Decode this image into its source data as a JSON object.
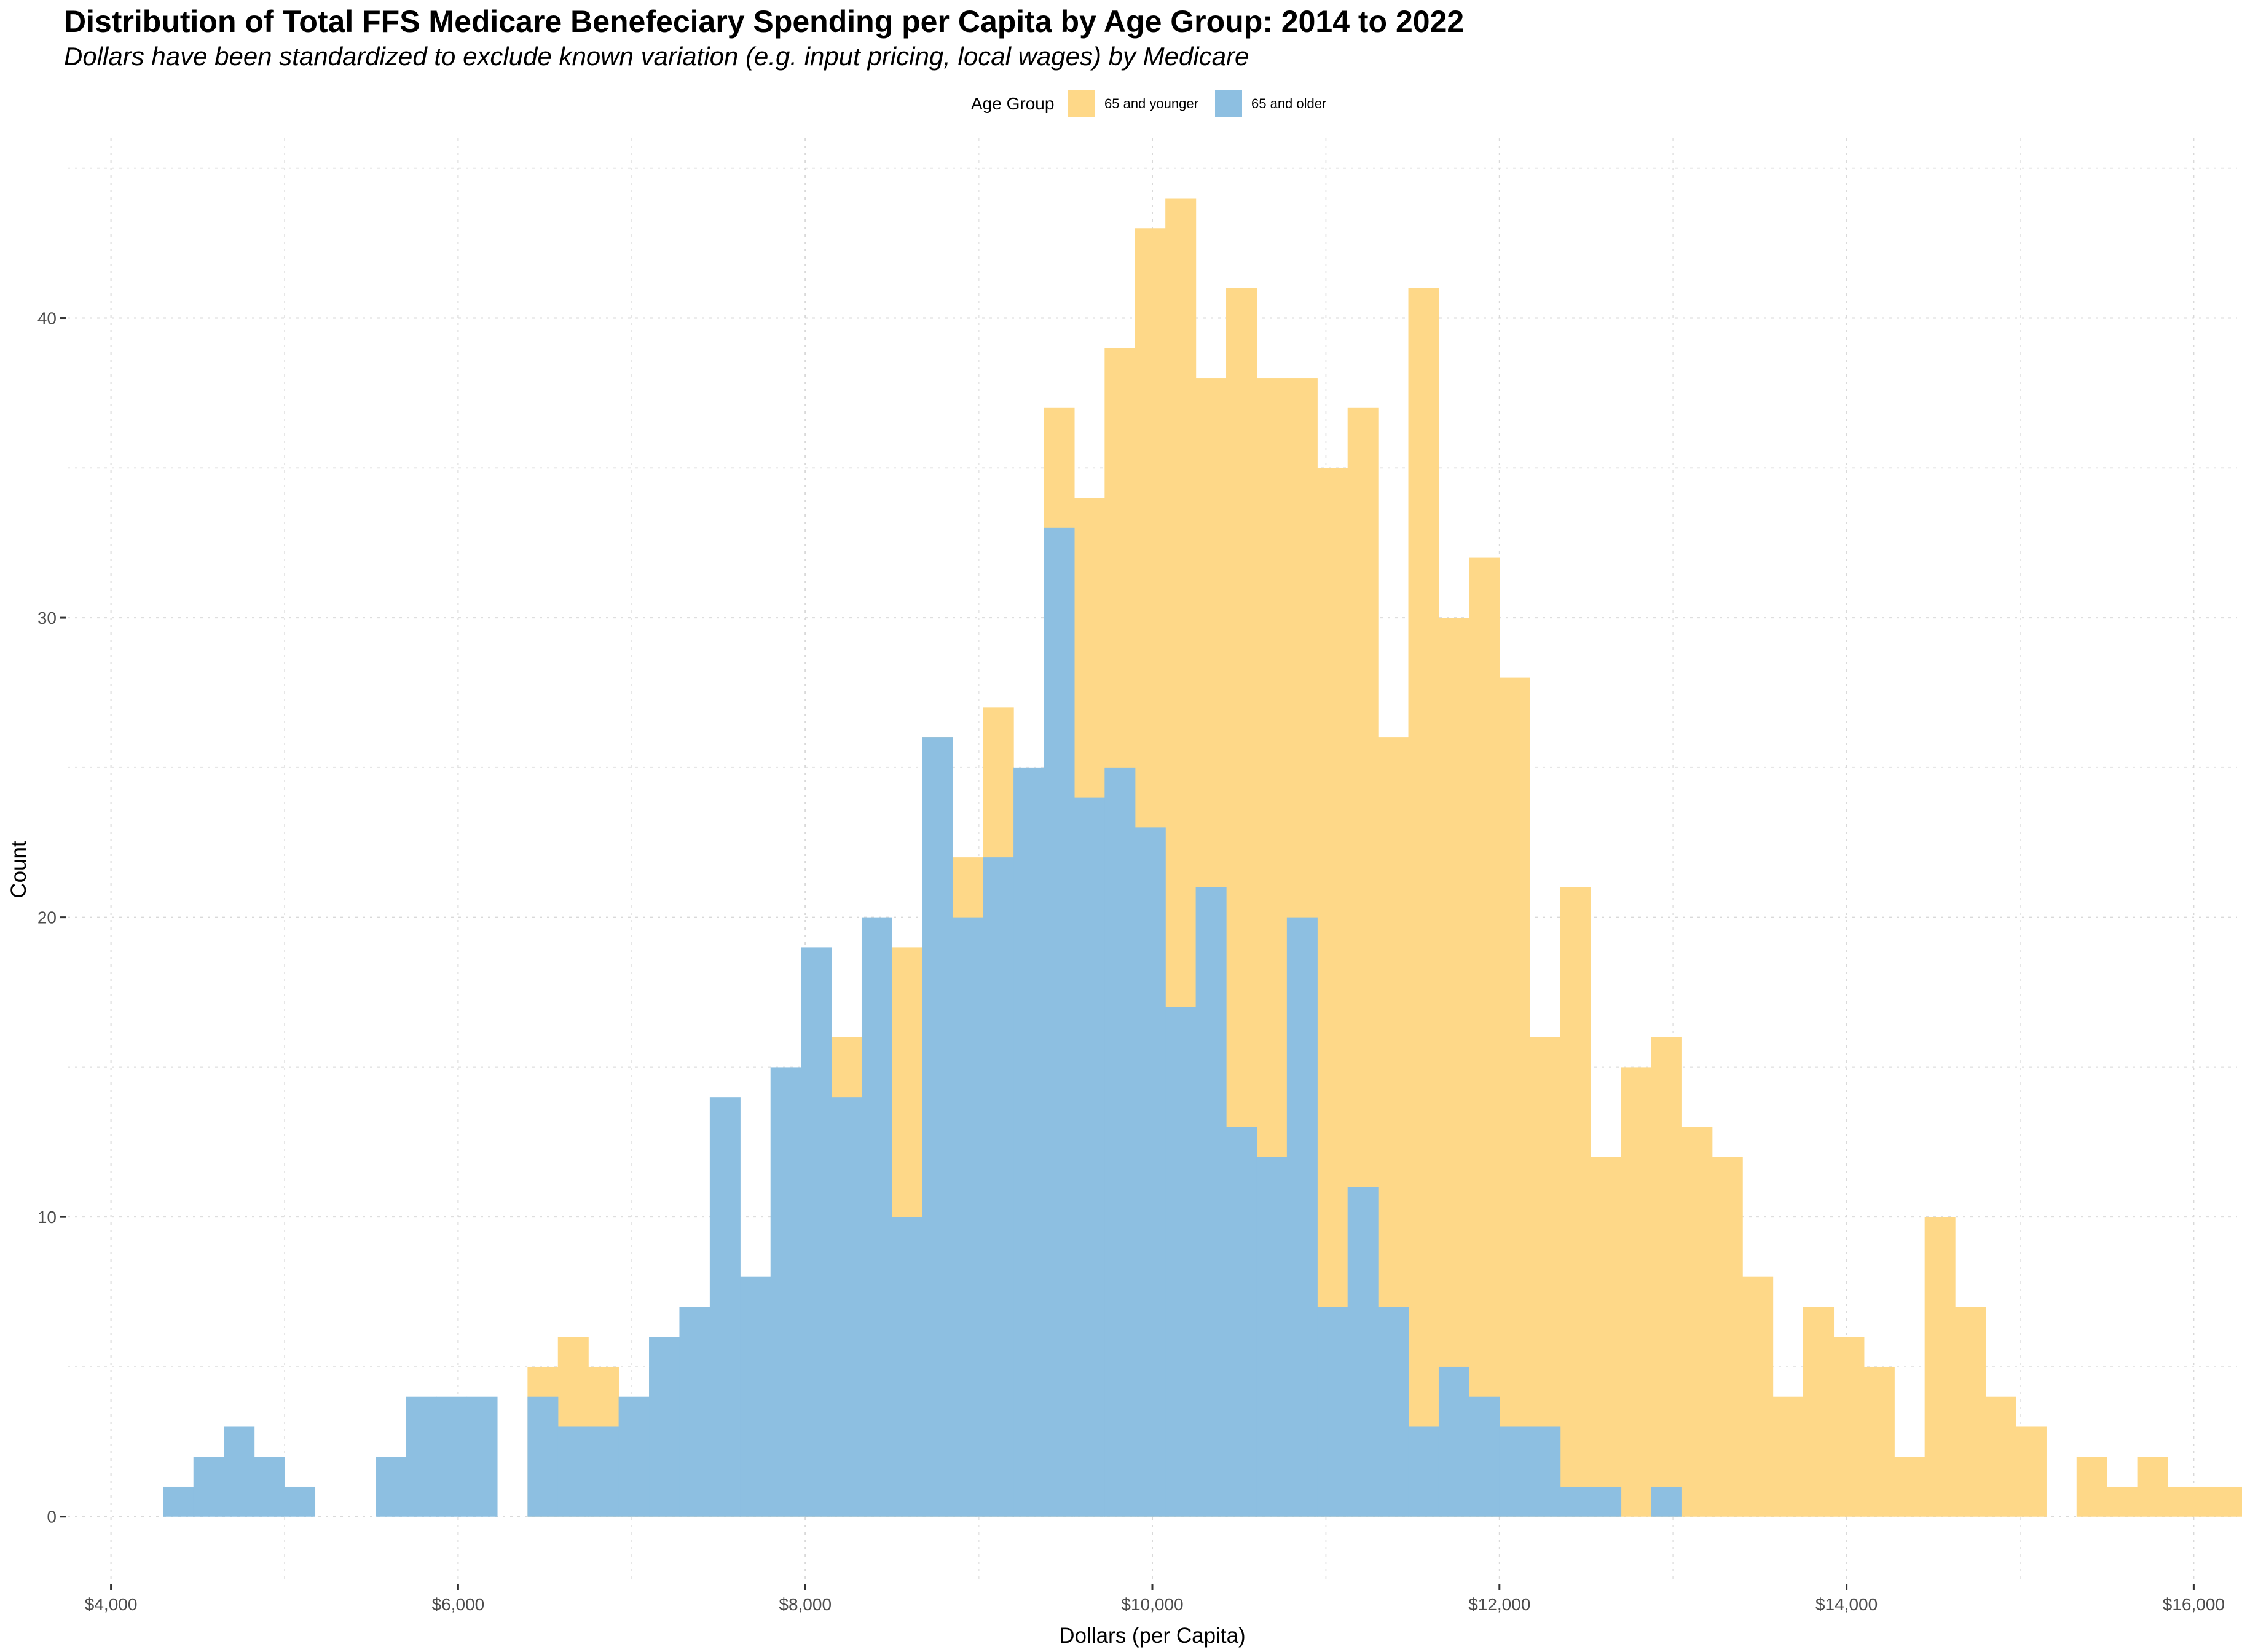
{
  "chart_data": {
    "type": "bar",
    "title": "Distribution of Total FFS Medicare Benefeciary Spending per Capita by Age Group: 2014 to 2022",
    "subtitle": "Dollars have been standardized to exclude known variation (e.g. input pricing, local wages) by Medicare",
    "xlabel": "Dollars (per Capita)",
    "ylabel": "Count",
    "xlim": [
      3750,
      16250
    ],
    "ylim": [
      -2.2,
      46
    ],
    "x_ticks": [
      4000,
      6000,
      8000,
      10000,
      12000,
      14000,
      16000
    ],
    "x_tick_labels": [
      "$4,000",
      "$6,000",
      "$8,000",
      "$10,000",
      "$12,000",
      "$14,000",
      "$16,000"
    ],
    "y_ticks": [
      0,
      10,
      20,
      30,
      40
    ],
    "y_tick_labels": [
      "0",
      "10",
      "20",
      "30",
      "40"
    ],
    "grid": true,
    "legend": {
      "title": "Age Group",
      "placement": "top"
    },
    "bins": {
      "start": 4300,
      "width": 175
    },
    "series": [
      {
        "name": "65 and younger",
        "color": "#fed888",
        "values": [
          0,
          0,
          0,
          0,
          0,
          0,
          0,
          0,
          0,
          0,
          0,
          0,
          5,
          6,
          5,
          2,
          5,
          4,
          3,
          4,
          7,
          8,
          16,
          12,
          19,
          26,
          22,
          27,
          21,
          37,
          34,
          39,
          43,
          44,
          38,
          41,
          38,
          38,
          35,
          37,
          26,
          41,
          30,
          32,
          28,
          16,
          21,
          12,
          15,
          16,
          13,
          12,
          8,
          4,
          7,
          6,
          5,
          2,
          10,
          7,
          4,
          3,
          0,
          2,
          1,
          2,
          1,
          1,
          1,
          1
        ]
      },
      {
        "name": "65 and older",
        "color": "#8dbfe1",
        "values": [
          1,
          2,
          3,
          2,
          1,
          0,
          0,
          2,
          4,
          4,
          4,
          0,
          4,
          3,
          3,
          4,
          6,
          7,
          14,
          8,
          15,
          19,
          14,
          20,
          10,
          26,
          20,
          22,
          25,
          33,
          24,
          25,
          23,
          17,
          21,
          13,
          12,
          20,
          7,
          11,
          7,
          3,
          5,
          4,
          3,
          3,
          1,
          1,
          0,
          1,
          0,
          0,
          0,
          0,
          0,
          0,
          0,
          0,
          0,
          0,
          0,
          0,
          0,
          0,
          0,
          0,
          0,
          0,
          0,
          0
        ]
      }
    ]
  }
}
